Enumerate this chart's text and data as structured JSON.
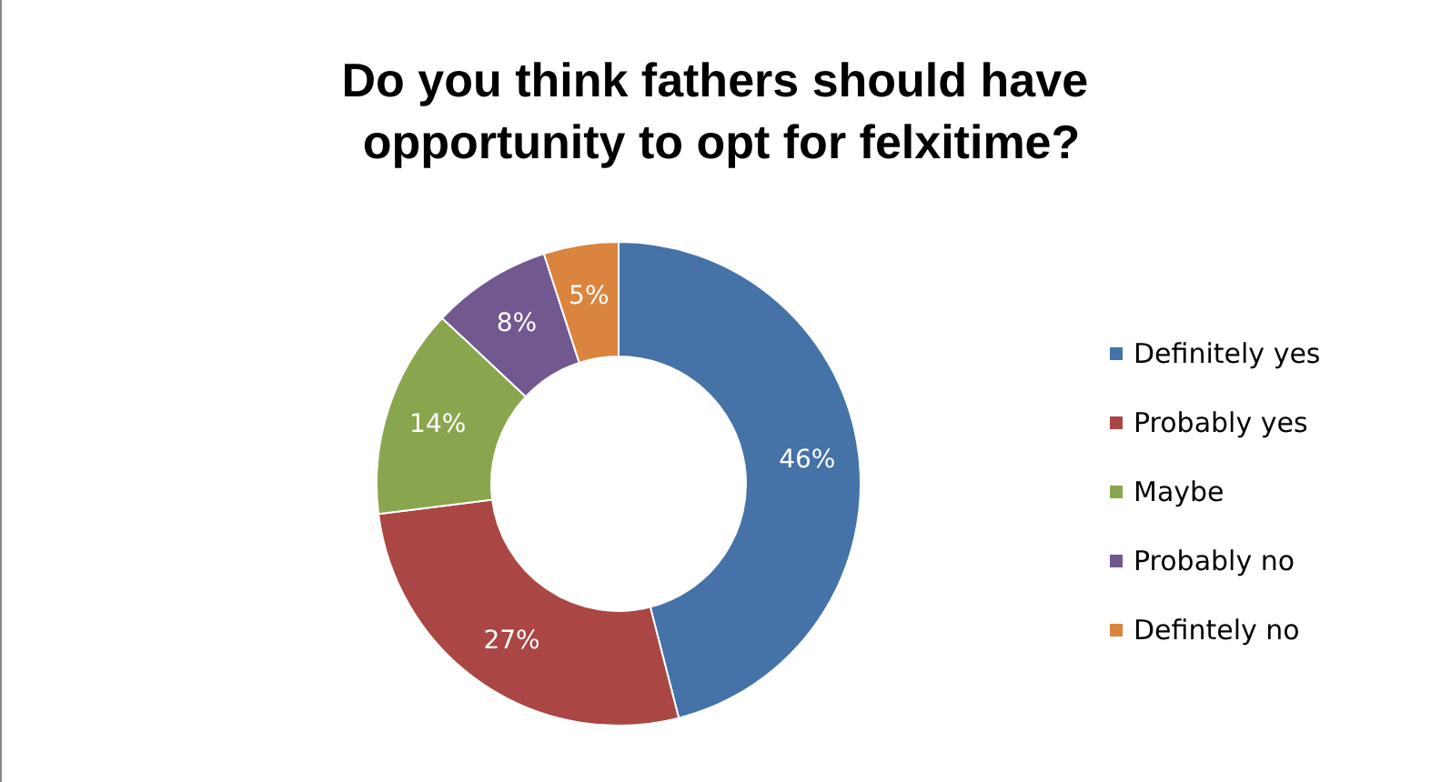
{
  "chart_data": {
    "type": "donut",
    "title": "Do you think fathers should have opportunity to opt for felxitime?",
    "categories": [
      "Definitely yes",
      "Probably yes",
      "Maybe",
      "Probably no",
      "Defintely no"
    ],
    "values": [
      46,
      27,
      14,
      8,
      5
    ],
    "colors": [
      "#4572a7",
      "#aa4643",
      "#89a54e",
      "#71588f",
      "#db843d"
    ],
    "value_labels": [
      "46%",
      "27%",
      "14%",
      "8%",
      "5%"
    ],
    "legend": "right"
  }
}
